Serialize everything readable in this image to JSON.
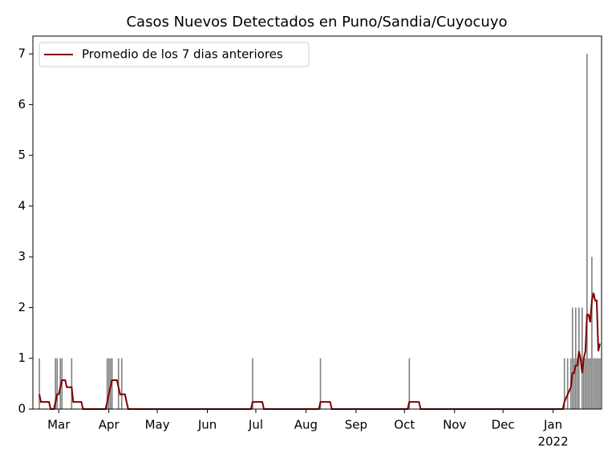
{
  "chart_data": {
    "type": "bar_line",
    "title": "Casos Nuevos Detectados en Puno/Sandia/Cuyocuyo",
    "xlim": [
      "2021-02-13",
      "2022-01-31"
    ],
    "xticks": [
      {
        "value": "2021-03-01",
        "label": "Mar"
      },
      {
        "value": "2021-04-01",
        "label": "Apr"
      },
      {
        "value": "2021-05-01",
        "label": "May"
      },
      {
        "value": "2021-06-01",
        "label": "Jun"
      },
      {
        "value": "2021-07-01",
        "label": "Jul"
      },
      {
        "value": "2021-08-01",
        "label": "Aug"
      },
      {
        "value": "2021-09-01",
        "label": "Sep"
      },
      {
        "value": "2021-10-01",
        "label": "Oct"
      },
      {
        "value": "2021-11-01",
        "label": "Nov"
      },
      {
        "value": "2021-12-01",
        "label": "Dec"
      },
      {
        "value": "2022-01-01",
        "label": "Jan"
      }
    ],
    "xtick_sublabels": [
      {
        "value": "2022-01-01",
        "label": "2022"
      }
    ],
    "ylim": [
      0,
      7.35
    ],
    "yticks": [
      0,
      1,
      2,
      3,
      4,
      5,
      6,
      7
    ],
    "legend": "upper left",
    "series": [
      {
        "type": "bar",
        "color": "#808080",
        "x": [
          "2021-02-17",
          "2021-02-27",
          "2021-02-28",
          "2021-03-02",
          "2021-03-03",
          "2021-03-09",
          "2021-03-31",
          "2021-04-01",
          "2021-04-02",
          "2021-04-03",
          "2021-04-07",
          "2021-04-09",
          "2021-06-29",
          "2021-08-10",
          "2021-10-04",
          "2022-01-08",
          "2022-01-10",
          "2022-01-12",
          "2022-01-13",
          "2022-01-14",
          "2022-01-15",
          "2022-01-16",
          "2022-01-17",
          "2022-01-19",
          "2022-01-20",
          "2022-01-21",
          "2022-01-22",
          "2022-01-23",
          "2022-01-24",
          "2022-01-25",
          "2022-01-26",
          "2022-01-27",
          "2022-01-28",
          "2022-01-29",
          "2022-01-30"
        ],
        "values": [
          1,
          1,
          1,
          1,
          1,
          1,
          1,
          1,
          1,
          1,
          1,
          1,
          1,
          1,
          1,
          1,
          1,
          1,
          2,
          1,
          2,
          1,
          2,
          2,
          1,
          1,
          7,
          1,
          1,
          3,
          1,
          1,
          1,
          1,
          1
        ]
      },
      {
        "type": "line",
        "name": "Promedio de los 7 dias anteriores",
        "color": "#800000",
        "x": [
          "2021-02-17",
          "2021-02-18",
          "2021-02-23",
          "2021-02-24",
          "2021-02-26",
          "2021-02-27",
          "2021-02-28",
          "2021-03-01",
          "2021-03-02",
          "2021-03-03",
          "2021-03-05",
          "2021-03-06",
          "2021-03-09",
          "2021-03-10",
          "2021-03-15",
          "2021-03-16",
          "2021-03-30",
          "2021-03-31",
          "2021-04-01",
          "2021-04-02",
          "2021-04-03",
          "2021-04-06",
          "2021-04-07",
          "2021-04-08",
          "2021-04-11",
          "2021-04-12",
          "2021-04-13",
          "2021-06-28",
          "2021-06-29",
          "2021-07-05",
          "2021-07-06",
          "2021-08-09",
          "2021-08-10",
          "2021-08-16",
          "2021-08-17",
          "2021-10-03",
          "2021-10-04",
          "2021-10-10",
          "2021-10-11",
          "2022-01-07",
          "2022-01-08",
          "2022-01-10",
          "2022-01-12",
          "2022-01-13",
          "2022-01-14",
          "2022-01-15",
          "2022-01-16",
          "2022-01-17",
          "2022-01-18",
          "2022-01-19",
          "2022-01-20",
          "2022-01-21",
          "2022-01-22",
          "2022-01-23",
          "2022-01-24",
          "2022-01-25",
          "2022-01-26",
          "2022-01-27",
          "2022-01-28",
          "2022-01-29",
          "2022-01-30"
        ],
        "values": [
          0.29,
          0.14,
          0.14,
          0,
          0,
          0.14,
          0.29,
          0.29,
          0.43,
          0.57,
          0.57,
          0.43,
          0.43,
          0.14,
          0.14,
          0,
          0,
          0.14,
          0.29,
          0.43,
          0.57,
          0.57,
          0.43,
          0.29,
          0.29,
          0.14,
          0,
          0,
          0.14,
          0.14,
          0,
          0,
          0.14,
          0.14,
          0,
          0,
          0.14,
          0.14,
          0,
          0,
          0.14,
          0.29,
          0.43,
          0.71,
          0.71,
          0.86,
          0.86,
          1.14,
          1.0,
          0.71,
          1.0,
          1.14,
          1.86,
          1.86,
          1.71,
          2.14,
          2.29,
          2.14,
          2.14,
          1.14,
          1.29
        ]
      }
    ]
  }
}
